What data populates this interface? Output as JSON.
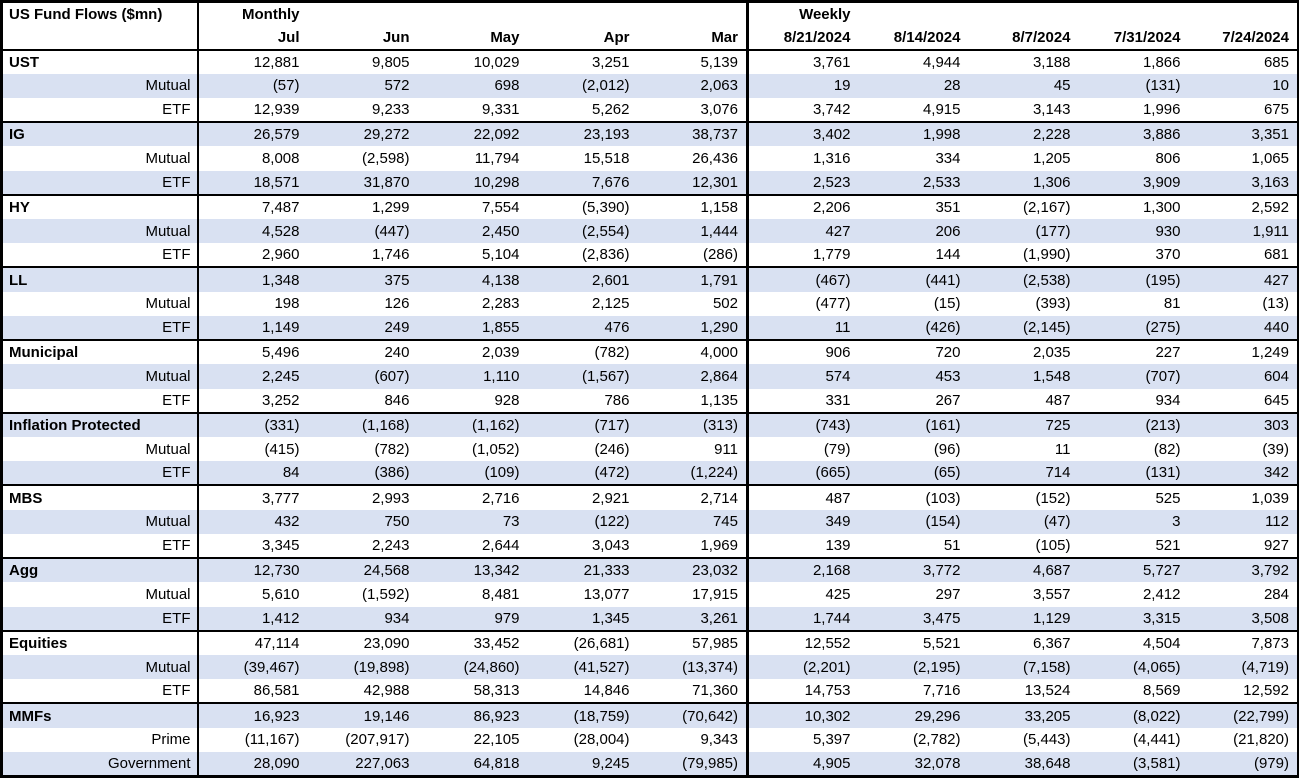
{
  "colors": {
    "stripe": "#d9e1f2",
    "border": "#000000",
    "header_bg": "#ffffff",
    "text": "#000000"
  },
  "chart_data": {
    "type": "table",
    "title": "US Fund Flows ($mn)",
    "section_labels": {
      "monthly": "Monthly",
      "weekly": "Weekly"
    },
    "columns": {
      "monthly": [
        "Jul",
        "Jun",
        "May",
        "Apr",
        "Mar"
      ],
      "weekly": [
        "8/21/2024",
        "8/14/2024",
        "8/7/2024",
        "7/31/2024",
        "7/24/2024"
      ]
    },
    "rows": [
      {
        "label": "UST",
        "category": true,
        "monthly": [
          "12,881",
          "9,805",
          "10,029",
          "3,251",
          "5,139"
        ],
        "weekly": [
          "3,761",
          "4,944",
          "3,188",
          "1,866",
          "685"
        ]
      },
      {
        "label": "Mutual",
        "monthly": [
          "(57)",
          "572",
          "698",
          "(2,012)",
          "2,063"
        ],
        "weekly": [
          "19",
          "28",
          "45",
          "(131)",
          "10"
        ]
      },
      {
        "label": "ETF",
        "monthly": [
          "12,939",
          "9,233",
          "9,331",
          "5,262",
          "3,076"
        ],
        "weekly": [
          "3,742",
          "4,915",
          "3,143",
          "1,996",
          "675"
        ]
      },
      {
        "label": "IG",
        "category": true,
        "monthly": [
          "26,579",
          "29,272",
          "22,092",
          "23,193",
          "38,737"
        ],
        "weekly": [
          "3,402",
          "1,998",
          "2,228",
          "3,886",
          "3,351"
        ]
      },
      {
        "label": "Mutual",
        "monthly": [
          "8,008",
          "(2,598)",
          "11,794",
          "15,518",
          "26,436"
        ],
        "weekly": [
          "1,316",
          "334",
          "1,205",
          "806",
          "1,065"
        ]
      },
      {
        "label": "ETF",
        "monthly": [
          "18,571",
          "31,870",
          "10,298",
          "7,676",
          "12,301"
        ],
        "weekly": [
          "2,523",
          "2,533",
          "1,306",
          "3,909",
          "3,163"
        ]
      },
      {
        "label": "HY",
        "category": true,
        "monthly": [
          "7,487",
          "1,299",
          "7,554",
          "(5,390)",
          "1,158"
        ],
        "weekly": [
          "2,206",
          "351",
          "(2,167)",
          "1,300",
          "2,592"
        ]
      },
      {
        "label": "Mutual",
        "monthly": [
          "4,528",
          "(447)",
          "2,450",
          "(2,554)",
          "1,444"
        ],
        "weekly": [
          "427",
          "206",
          "(177)",
          "930",
          "1,911"
        ]
      },
      {
        "label": "ETF",
        "monthly": [
          "2,960",
          "1,746",
          "5,104",
          "(2,836)",
          "(286)"
        ],
        "weekly": [
          "1,779",
          "144",
          "(1,990)",
          "370",
          "681"
        ]
      },
      {
        "label": "LL",
        "category": true,
        "monthly": [
          "1,348",
          "375",
          "4,138",
          "2,601",
          "1,791"
        ],
        "weekly": [
          "(467)",
          "(441)",
          "(2,538)",
          "(195)",
          "427"
        ]
      },
      {
        "label": "Mutual",
        "monthly": [
          "198",
          "126",
          "2,283",
          "2,125",
          "502"
        ],
        "weekly": [
          "(477)",
          "(15)",
          "(393)",
          "81",
          "(13)"
        ]
      },
      {
        "label": "ETF",
        "monthly": [
          "1,149",
          "249",
          "1,855",
          "476",
          "1,290"
        ],
        "weekly": [
          "11",
          "(426)",
          "(2,145)",
          "(275)",
          "440"
        ]
      },
      {
        "label": "Municipal",
        "category": true,
        "monthly": [
          "5,496",
          "240",
          "2,039",
          "(782)",
          "4,000"
        ],
        "weekly": [
          "906",
          "720",
          "2,035",
          "227",
          "1,249"
        ]
      },
      {
        "label": "Mutual",
        "monthly": [
          "2,245",
          "(607)",
          "1,110",
          "(1,567)",
          "2,864"
        ],
        "weekly": [
          "574",
          "453",
          "1,548",
          "(707)",
          "604"
        ]
      },
      {
        "label": "ETF",
        "monthly": [
          "3,252",
          "846",
          "928",
          "786",
          "1,135"
        ],
        "weekly": [
          "331",
          "267",
          "487",
          "934",
          "645"
        ]
      },
      {
        "label": "Inflation Protected",
        "category": true,
        "monthly": [
          "(331)",
          "(1,168)",
          "(1,162)",
          "(717)",
          "(313)"
        ],
        "weekly": [
          "(743)",
          "(161)",
          "725",
          "(213)",
          "303"
        ]
      },
      {
        "label": "Mutual",
        "monthly": [
          "(415)",
          "(782)",
          "(1,052)",
          "(246)",
          "911"
        ],
        "weekly": [
          "(79)",
          "(96)",
          "11",
          "(82)",
          "(39)"
        ]
      },
      {
        "label": "ETF",
        "monthly": [
          "84",
          "(386)",
          "(109)",
          "(472)",
          "(1,224)"
        ],
        "weekly": [
          "(665)",
          "(65)",
          "714",
          "(131)",
          "342"
        ]
      },
      {
        "label": "MBS",
        "category": true,
        "monthly": [
          "3,777",
          "2,993",
          "2,716",
          "2,921",
          "2,714"
        ],
        "weekly": [
          "487",
          "(103)",
          "(152)",
          "525",
          "1,039"
        ]
      },
      {
        "label": "Mutual",
        "monthly": [
          "432",
          "750",
          "73",
          "(122)",
          "745"
        ],
        "weekly": [
          "349",
          "(154)",
          "(47)",
          "3",
          "112"
        ]
      },
      {
        "label": "ETF",
        "monthly": [
          "3,345",
          "2,243",
          "2,644",
          "3,043",
          "1,969"
        ],
        "weekly": [
          "139",
          "51",
          "(105)",
          "521",
          "927"
        ]
      },
      {
        "label": "Agg",
        "category": true,
        "monthly": [
          "12,730",
          "24,568",
          "13,342",
          "21,333",
          "23,032"
        ],
        "weekly": [
          "2,168",
          "3,772",
          "4,687",
          "5,727",
          "3,792"
        ]
      },
      {
        "label": "Mutual",
        "monthly": [
          "5,610",
          "(1,592)",
          "8,481",
          "13,077",
          "17,915"
        ],
        "weekly": [
          "425",
          "297",
          "3,557",
          "2,412",
          "284"
        ]
      },
      {
        "label": "ETF",
        "monthly": [
          "1,412",
          "934",
          "979",
          "1,345",
          "3,261"
        ],
        "weekly": [
          "1,744",
          "3,475",
          "1,129",
          "3,315",
          "3,508"
        ]
      },
      {
        "label": "Equities",
        "category": true,
        "monthly": [
          "47,114",
          "23,090",
          "33,452",
          "(26,681)",
          "57,985"
        ],
        "weekly": [
          "12,552",
          "5,521",
          "6,367",
          "4,504",
          "7,873"
        ]
      },
      {
        "label": "Mutual",
        "monthly": [
          "(39,467)",
          "(19,898)",
          "(24,860)",
          "(41,527)",
          "(13,374)"
        ],
        "weekly": [
          "(2,201)",
          "(2,195)",
          "(7,158)",
          "(4,065)",
          "(4,719)"
        ]
      },
      {
        "label": "ETF",
        "monthly": [
          "86,581",
          "42,988",
          "58,313",
          "14,846",
          "71,360"
        ],
        "weekly": [
          "14,753",
          "7,716",
          "13,524",
          "8,569",
          "12,592"
        ]
      },
      {
        "label": "MMFs",
        "category": true,
        "monthly": [
          "16,923",
          "19,146",
          "86,923",
          "(18,759)",
          "(70,642)"
        ],
        "weekly": [
          "10,302",
          "29,296",
          "33,205",
          "(8,022)",
          "(22,799)"
        ]
      },
      {
        "label": "Prime",
        "monthly": [
          "(11,167)",
          "(207,917)",
          "22,105",
          "(28,004)",
          "9,343"
        ],
        "weekly": [
          "5,397",
          "(2,782)",
          "(5,443)",
          "(4,441)",
          "(21,820)"
        ]
      },
      {
        "label": "Government",
        "monthly": [
          "28,090",
          "227,063",
          "64,818",
          "9,245",
          "(79,985)"
        ],
        "weekly": [
          "4,905",
          "32,078",
          "38,648",
          "(3,581)",
          "(979)"
        ]
      }
    ]
  }
}
